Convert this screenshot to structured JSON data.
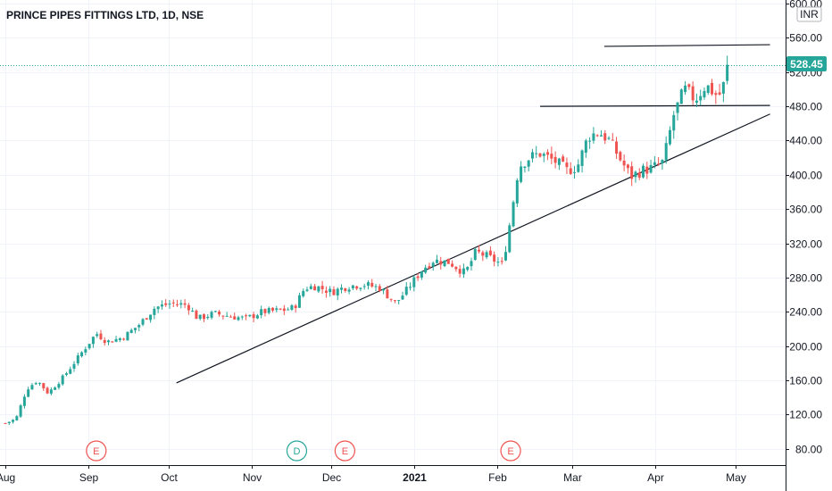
{
  "chart_data": {
    "type": "candlestick",
    "title": "PRINCE PIPES FITTINGS LTD, 1D, NSE",
    "currency": "INR",
    "y_ticks": [
      600,
      560,
      520,
      480,
      440,
      400,
      360,
      320,
      280,
      240,
      200,
      160,
      120,
      80
    ],
    "y_tick_labels": [
      "600.00",
      "560.00",
      "520.00",
      "480.00",
      "440.00",
      "400.00",
      "360.00",
      "320.00",
      "280.00",
      "240.00",
      "200.00",
      "160.00",
      "120.00",
      "80.00"
    ],
    "ylim": [
      64,
      610
    ],
    "x_ticks": [
      {
        "label": "Aug",
        "day": 0
      },
      {
        "label": "Sep",
        "day": 31
      },
      {
        "label": "Oct",
        "day": 61
      },
      {
        "label": "Nov",
        "day": 92
      },
      {
        "label": "Dec",
        "day": 122
      },
      {
        "label": "2021",
        "day": 153,
        "bold": true
      },
      {
        "label": "Feb",
        "day": 184
      },
      {
        "label": "Mar",
        "day": 212
      },
      {
        "label": "Apr",
        "day": 243
      },
      {
        "label": "May",
        "day": 273
      }
    ],
    "last_price": 528.45,
    "last_price_label": "528.45",
    "up_color": "#26a69a",
    "down_color": "#ef5350",
    "events": [
      {
        "label": "E",
        "day": 34,
        "color": "#ef5350"
      },
      {
        "label": "D",
        "day": 109,
        "color": "#26a69a"
      },
      {
        "label": "E",
        "day": 127,
        "color": "#ef5350"
      },
      {
        "label": "E",
        "day": 189,
        "color": "#ef5350"
      }
    ],
    "trendlines": [
      {
        "from": {
          "day": 64,
          "price": 157
        },
        "to": {
          "day": 286,
          "price": 471
        }
      },
      {
        "from": {
          "day": 200,
          "price": 480
        },
        "to": {
          "day": 286,
          "price": 481
        }
      },
      {
        "from": {
          "day": 224,
          "price": 550
        },
        "to": {
          "day": 286,
          "price": 552
        }
      }
    ],
    "anchors": [
      [
        0,
        110
      ],
      [
        4,
        115
      ],
      [
        8,
        150
      ],
      [
        12,
        160
      ],
      [
        16,
        145
      ],
      [
        22,
        165
      ],
      [
        28,
        190
      ],
      [
        34,
        215
      ],
      [
        38,
        205
      ],
      [
        44,
        210
      ],
      [
        50,
        225
      ],
      [
        56,
        245
      ],
      [
        62,
        250
      ],
      [
        68,
        248
      ],
      [
        72,
        232
      ],
      [
        78,
        238
      ],
      [
        84,
        235
      ],
      [
        90,
        232
      ],
      [
        96,
        240
      ],
      [
        104,
        242
      ],
      [
        108,
        245
      ],
      [
        112,
        268
      ],
      [
        116,
        270
      ],
      [
        122,
        263
      ],
      [
        128,
        270
      ],
      [
        134,
        272
      ],
      [
        140,
        268
      ],
      [
        146,
        250
      ],
      [
        150,
        265
      ],
      [
        156,
        290
      ],
      [
        160,
        300
      ],
      [
        166,
        298
      ],
      [
        172,
        285
      ],
      [
        176,
        310
      ],
      [
        180,
        305
      ],
      [
        186,
        295
      ],
      [
        188,
        330
      ],
      [
        192,
        410
      ],
      [
        196,
        420
      ],
      [
        200,
        425
      ],
      [
        206,
        415
      ],
      [
        210,
        405
      ],
      [
        214,
        410
      ],
      [
        218,
        445
      ],
      [
        222,
        450
      ],
      [
        226,
        440
      ],
      [
        230,
        418
      ],
      [
        234,
        398
      ],
      [
        238,
        405
      ],
      [
        242,
        408
      ],
      [
        246,
        415
      ],
      [
        250,
        470
      ],
      [
        254,
        500
      ],
      [
        258,
        488
      ],
      [
        262,
        505
      ],
      [
        266,
        493
      ],
      [
        268,
        495
      ],
      [
        270,
        528.45
      ]
    ],
    "candle_count": 190
  }
}
